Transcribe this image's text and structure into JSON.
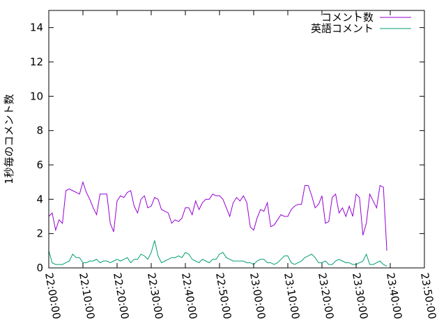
{
  "chart_data": {
    "type": "line",
    "ylabel": "1秒毎のコメント数",
    "xlabel": "",
    "ylim": [
      0,
      15
    ],
    "yticks": [
      0,
      2,
      4,
      6,
      8,
      10,
      12,
      14
    ],
    "xlim": [
      "22:00:00",
      "23:50:00"
    ],
    "xticks": [
      "22:00:00",
      "22:10:00",
      "22:20:00",
      "22:30:00",
      "22:40:00",
      "22:50:00",
      "23:00:00",
      "23:10:00",
      "23:20:00",
      "23:30:00",
      "23:40:00",
      "23:50:00"
    ],
    "x_step": "1 minute",
    "legend_position": "top-right",
    "grid": false,
    "colors": {
      "series1": "#9400d3",
      "series2": "#009e73"
    },
    "series": [
      {
        "name": "コメント数",
        "x_start": "22:00:00",
        "values": [
          3.0,
          3.2,
          2.2,
          2.8,
          2.6,
          4.5,
          4.6,
          4.5,
          4.4,
          4.3,
          5.0,
          4.4,
          4.0,
          3.5,
          3.1,
          4.3,
          4.3,
          4.3,
          2.6,
          2.1,
          3.9,
          4.2,
          4.1,
          4.4,
          4.5,
          3.6,
          3.2,
          4.0,
          4.2,
          3.5,
          3.6,
          4.1,
          4.0,
          3.4,
          3.3,
          3.2,
          2.6,
          2.8,
          2.7,
          2.9,
          3.5,
          3.5,
          3.1,
          3.9,
          3.4,
          3.8,
          4.0,
          4.0,
          4.3,
          4.2,
          4.2,
          4.0,
          3.5,
          3.0,
          3.8,
          4.1,
          3.9,
          4.2,
          3.8,
          2.4,
          2.2,
          2.9,
          3.4,
          3.3,
          3.8,
          2.4,
          2.5,
          2.8,
          3.1,
          3.0,
          3.0,
          3.4,
          3.6,
          3.7,
          3.7,
          4.8,
          4.8,
          4.2,
          3.5,
          3.7,
          4.2,
          2.6,
          2.7,
          4.1,
          4.3,
          3.2,
          3.5,
          3.0,
          3.6,
          3.0,
          4.3,
          4.1,
          1.9,
          2.6,
          4.3,
          3.9,
          3.5,
          4.8,
          4.7,
          1.0
        ]
      },
      {
        "name": "英語コメント",
        "x_start": "22:00:00",
        "values": [
          1.0,
          0.3,
          0.2,
          0.2,
          0.2,
          0.3,
          0.4,
          0.8,
          0.6,
          0.6,
          0.3,
          0.3,
          0.4,
          0.4,
          0.5,
          0.3,
          0.4,
          0.4,
          0.3,
          0.4,
          0.5,
          0.4,
          0.5,
          0.6,
          0.3,
          0.5,
          0.5,
          0.8,
          0.7,
          0.5,
          0.9,
          1.6,
          0.7,
          0.3,
          0.4,
          0.5,
          0.6,
          0.6,
          0.7,
          0.6,
          0.9,
          0.8,
          0.5,
          0.4,
          0.3,
          0.5,
          0.4,
          0.3,
          0.5,
          0.5,
          0.8,
          0.9,
          0.6,
          0.5,
          0.4,
          0.4,
          0.4,
          0.4,
          0.3,
          0.3,
          0.2,
          0.4,
          0.5,
          0.5,
          0.3,
          0.3,
          0.2,
          0.3,
          0.5,
          0.7,
          0.7,
          0.3,
          0.2,
          0.3,
          0.4,
          0.6,
          0.7,
          0.8,
          0.6,
          0.3,
          0.3,
          0.4,
          0.2,
          0.2,
          0.4,
          0.5,
          0.4,
          0.3,
          0.3,
          0.2,
          0.2,
          0.3,
          0.4,
          0.8,
          0.2,
          0.2,
          0.3,
          0.4,
          0.2,
          0.1
        ]
      }
    ]
  }
}
